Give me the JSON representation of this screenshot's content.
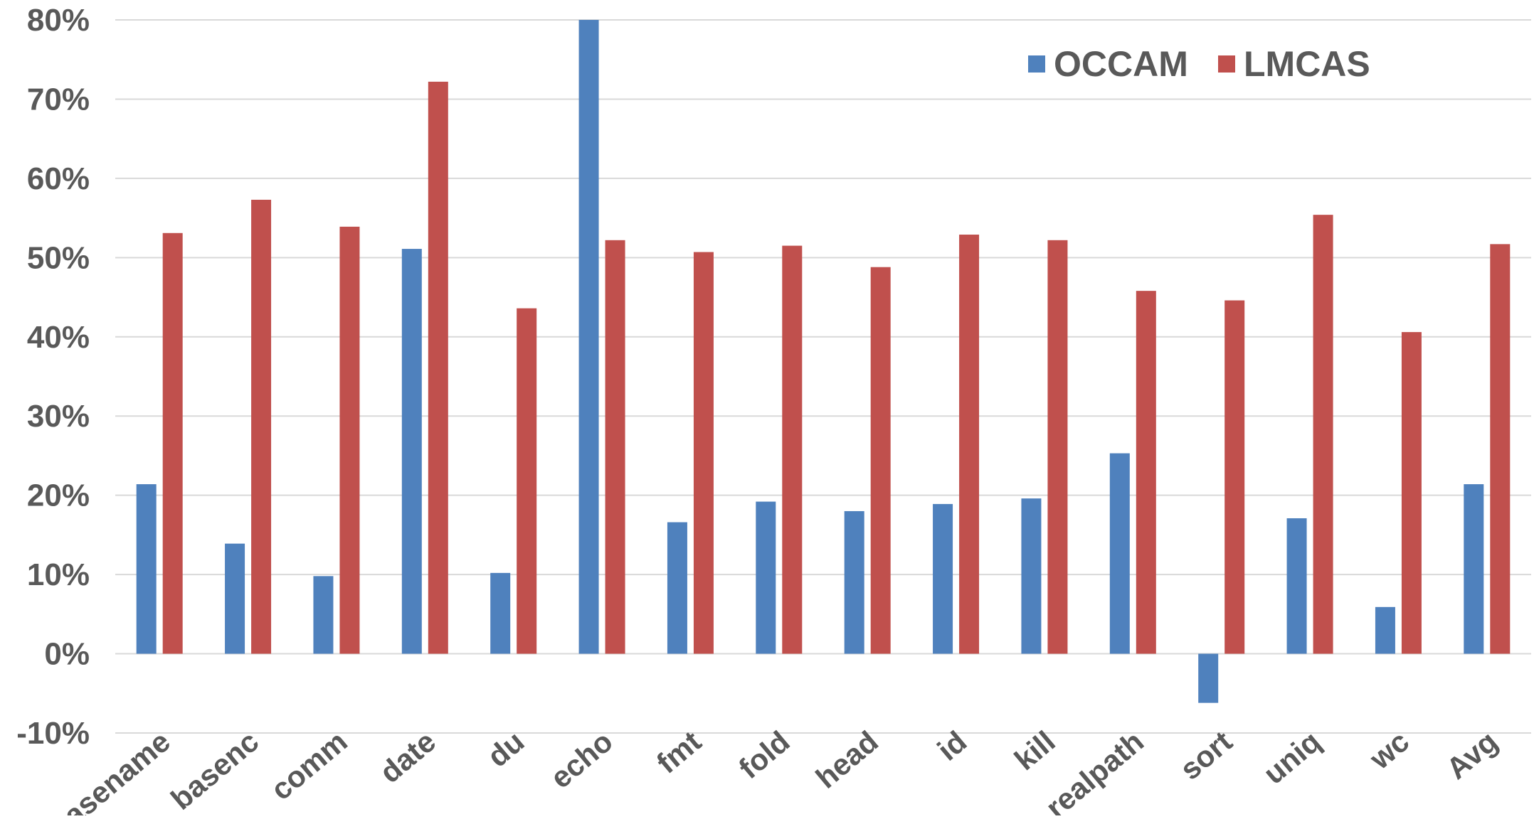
{
  "chart_data": {
    "type": "bar",
    "categories": [
      "basename",
      "basenc",
      "comm",
      "date",
      "du",
      "echo",
      "fmt",
      "fold",
      "head",
      "id",
      "kill",
      "realpath",
      "sort",
      "uniq",
      "wc",
      "Avg"
    ],
    "series": [
      {
        "name": "OCCAM",
        "color": "#4F81BD",
        "values": [
          21.4,
          13.9,
          9.8,
          51.1,
          10.2,
          80.0,
          16.6,
          19.2,
          18.0,
          18.9,
          19.6,
          25.3,
          -6.2,
          17.1,
          5.9,
          21.4
        ]
      },
      {
        "name": "LMCAS",
        "color": "#C0504D",
        "values": [
          53.1,
          57.3,
          53.9,
          72.2,
          43.6,
          52.2,
          50.7,
          51.5,
          48.8,
          52.9,
          52.2,
          45.8,
          44.6,
          55.4,
          40.6,
          51.7
        ]
      }
    ],
    "yticks": [
      "80%",
      "70%",
      "60%",
      "50%",
      "40%",
      "30%",
      "20%",
      "10%",
      "0%",
      "-10%"
    ],
    "ylim": [
      -10,
      80
    ],
    "ylabel": "",
    "xlabel": "",
    "title": "",
    "grid": true,
    "legend_position": "top-right",
    "gridline_color": "#D9D9D9",
    "text_color": "#595959"
  }
}
